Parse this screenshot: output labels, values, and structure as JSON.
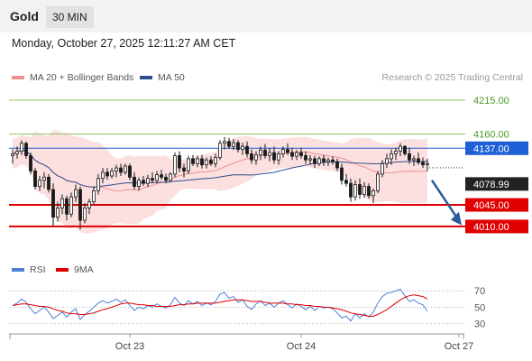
{
  "header": {
    "title": "Gold",
    "timeframe": "30 MIN",
    "timestamp": "Monday, October 27, 2025 12:11:27 AM CET",
    "credit": "Research © 2025 Trading Central"
  },
  "colors": {
    "up": "#1a1a1a",
    "down": "#1a1a1a",
    "band": "#fcd9d9",
    "ma20": "#f19090",
    "ma50": "#2e4f8e",
    "resistance": "#8fc96a",
    "support": "#e00000",
    "pivot": "#1e5fd6",
    "arrow": "#2b5a9e",
    "rsi": "#4f7fd9",
    "rsi_ma": "#e00000"
  },
  "chart_data": [
    {
      "type": "candlestick",
      "legend": [
        {
          "label": "MA 20 + Bollinger Bands",
          "color": "#f19090"
        },
        {
          "label": "MA 50",
          "color": "#2e4f8e"
        }
      ],
      "ylim": [
        3985,
        4237
      ],
      "x_ticks": [
        {
          "index": 26,
          "label": "Oct 23"
        },
        {
          "index": 64,
          "label": "Oct 24"
        },
        {
          "index": 99,
          "label": "Oct 27"
        }
      ],
      "levels": [
        {
          "value": 4215,
          "label": "4215.00",
          "kind": "resistance"
        },
        {
          "value": 4160,
          "label": "4160.00",
          "kind": "resistance"
        },
        {
          "value": 4137,
          "label": "4137.00",
          "kind": "pivot"
        },
        {
          "value": 4045,
          "label": "4045.00",
          "kind": "support"
        },
        {
          "value": 4010,
          "label": "4010.00",
          "kind": "support"
        }
      ],
      "last_price": {
        "value": 4078.99,
        "label": "4078.99"
      },
      "forecast": {
        "from": 4085,
        "to": 4012
      },
      "candles": [
        [
          4125,
          4135,
          4112,
          4128
        ],
        [
          4128,
          4140,
          4120,
          4132
        ],
        [
          4132,
          4150,
          4126,
          4145
        ],
        [
          4145,
          4148,
          4120,
          4125
        ],
        [
          4125,
          4130,
          4095,
          4100
        ],
        [
          4100,
          4105,
          4070,
          4075
        ],
        [
          4075,
          4092,
          4068,
          4085
        ],
        [
          4085,
          4098,
          4072,
          4090
        ],
        [
          4090,
          4095,
          4065,
          4070
        ],
        [
          4070,
          4080,
          4010,
          4025
        ],
        [
          4025,
          4050,
          4018,
          4040
        ],
        [
          4040,
          4062,
          4030,
          4055
        ],
        [
          4055,
          4060,
          4020,
          4030
        ],
        [
          4030,
          4065,
          4025,
          4058
        ],
        [
          4058,
          4078,
          4050,
          4070
        ],
        [
          4070,
          4075,
          4005,
          4020
        ],
        [
          4020,
          4048,
          4015,
          4040
        ],
        [
          4040,
          4055,
          4030,
          4050
        ],
        [
          4050,
          4075,
          4045,
          4068
        ],
        [
          4068,
          4095,
          4062,
          4088
        ],
        [
          4088,
          4105,
          4080,
          4098
        ],
        [
          4098,
          4105,
          4086,
          4092
        ],
        [
          4092,
          4105,
          4088,
          4100
        ],
        [
          4100,
          4110,
          4090,
          4105
        ],
        [
          4105,
          4112,
          4092,
          4098
        ],
        [
          4098,
          4112,
          4094,
          4108
        ],
        [
          4108,
          4112,
          4085,
          4090
        ],
        [
          4090,
          4098,
          4070,
          4075
        ],
        [
          4075,
          4090,
          4068,
          4085
        ],
        [
          4085,
          4092,
          4076,
          4080
        ],
        [
          4080,
          4094,
          4074,
          4088
        ],
        [
          4088,
          4098,
          4080,
          4085
        ],
        [
          4085,
          4100,
          4080,
          4094
        ],
        [
          4094,
          4102,
          4086,
          4090
        ],
        [
          4090,
          4096,
          4080,
          4085
        ],
        [
          4085,
          4098,
          4082,
          4095
        ],
        [
          4095,
          4130,
          4090,
          4125
        ],
        [
          4125,
          4132,
          4098,
          4105
        ],
        [
          4105,
          4112,
          4090,
          4100
        ],
        [
          4100,
          4125,
          4095,
          4120
        ],
        [
          4120,
          4126,
          4108,
          4112
        ],
        [
          4112,
          4125,
          4106,
          4120
        ],
        [
          4120,
          4126,
          4104,
          4110
        ],
        [
          4110,
          4122,
          4104,
          4118
        ],
        [
          4118,
          4124,
          4108,
          4112
        ],
        [
          4112,
          4128,
          4106,
          4122
        ],
        [
          4122,
          4150,
          4118,
          4145
        ],
        [
          4145,
          4155,
          4135,
          4148
        ],
        [
          4148,
          4154,
          4136,
          4140
        ],
        [
          4140,
          4152,
          4134,
          4146
        ],
        [
          4146,
          4150,
          4130,
          4135
        ],
        [
          4135,
          4146,
          4126,
          4140
        ],
        [
          4140,
          4148,
          4122,
          4128
        ],
        [
          4128,
          4135,
          4112,
          4118
        ],
        [
          4118,
          4132,
          4110,
          4126
        ],
        [
          4126,
          4140,
          4118,
          4134
        ],
        [
          4134,
          4144,
          4120,
          4125
        ],
        [
          4125,
          4138,
          4116,
          4130
        ],
        [
          4130,
          4140,
          4112,
          4118
        ],
        [
          4118,
          4132,
          4110,
          4128
        ],
        [
          4128,
          4140,
          4122,
          4135
        ],
        [
          4135,
          4145,
          4126,
          4130
        ],
        [
          4130,
          4138,
          4118,
          4124
        ],
        [
          4124,
          4134,
          4118,
          4130
        ],
        [
          4130,
          4138,
          4120,
          4125
        ],
        [
          4125,
          4132,
          4112,
          4118
        ],
        [
          4118,
          4126,
          4110,
          4120
        ],
        [
          4120,
          4125,
          4105,
          4112
        ],
        [
          4112,
          4124,
          4108,
          4120
        ],
        [
          4120,
          4126,
          4108,
          4115
        ],
        [
          4115,
          4122,
          4108,
          4118
        ],
        [
          4118,
          4124,
          4110,
          4115
        ],
        [
          4115,
          4120,
          4100,
          4105
        ],
        [
          4105,
          4112,
          4078,
          4085
        ],
        [
          4085,
          4095,
          4075,
          4080
        ],
        [
          4080,
          4088,
          4050,
          4058
        ],
        [
          4058,
          4085,
          4052,
          4078
        ],
        [
          4078,
          4088,
          4055,
          4062
        ],
        [
          4062,
          4082,
          4056,
          4075
        ],
        [
          4075,
          4080,
          4055,
          4060
        ],
        [
          4060,
          4072,
          4048,
          4068
        ],
        [
          4068,
          4100,
          4064,
          4095
        ],
        [
          4095,
          4118,
          4090,
          4112
        ],
        [
          4112,
          4128,
          4105,
          4120
        ],
        [
          4120,
          4135,
          4110,
          4128
        ],
        [
          4128,
          4138,
          4118,
          4132
        ],
        [
          4132,
          4145,
          4124,
          4140
        ],
        [
          4140,
          4142,
          4125,
          4128
        ],
        [
          4128,
          4138,
          4112,
          4118
        ],
        [
          4118,
          4125,
          4108,
          4120
        ],
        [
          4120,
          4130,
          4110,
          4114
        ],
        [
          4114,
          4122,
          4105,
          4110
        ],
        [
          4110,
          4120,
          4100,
          4112
        ]
      ]
    },
    {
      "type": "line",
      "legend": [
        {
          "label": "RSI",
          "color": "#4f7fd9"
        },
        {
          "label": "9MA",
          "color": "#e00000"
        }
      ],
      "ylim": [
        25,
        78
      ],
      "y_ticks": [
        70,
        50,
        30
      ],
      "series": [
        {
          "name": "RSI",
          "values": [
            52,
            55,
            60,
            56,
            48,
            42,
            46,
            50,
            44,
            36,
            40,
            44,
            38,
            44,
            48,
            35,
            41,
            45,
            50,
            55,
            58,
            55,
            57,
            60,
            56,
            59,
            52,
            46,
            50,
            48,
            52,
            50,
            54,
            51,
            49,
            53,
            62,
            55,
            52,
            58,
            54,
            57,
            52,
            55,
            53,
            57,
            66,
            68,
            61,
            63,
            56,
            59,
            51,
            47,
            54,
            58,
            52,
            55,
            50,
            55,
            58,
            53,
            49,
            54,
            51,
            47,
            51,
            46,
            51,
            49,
            50,
            48,
            43,
            37,
            39,
            33,
            42,
            37,
            42,
            38,
            44,
            55,
            63,
            67,
            68,
            70,
            72,
            64,
            57,
            59,
            55,
            53,
            45
          ]
        },
        {
          "name": "9MA",
          "values": [
            52,
            53,
            54,
            54,
            53,
            52,
            51,
            51,
            50,
            48,
            46,
            45,
            43,
            42,
            42,
            41,
            41,
            42,
            43,
            45,
            47,
            48,
            50,
            52,
            54,
            55,
            55,
            54,
            53,
            53,
            52,
            52,
            51,
            51,
            51,
            51,
            52,
            53,
            53,
            54,
            54,
            55,
            55,
            55,
            55,
            55,
            56,
            57,
            58,
            59,
            59,
            59,
            58,
            57,
            57,
            57,
            56,
            55,
            55,
            55,
            55,
            54,
            54,
            53,
            53,
            52,
            52,
            51,
            51,
            50,
            50,
            49,
            48,
            47,
            45,
            43,
            42,
            41,
            40,
            39,
            39,
            41,
            44,
            47,
            51,
            55,
            59,
            62,
            64,
            65,
            64,
            63,
            60
          ]
        }
      ]
    }
  ]
}
